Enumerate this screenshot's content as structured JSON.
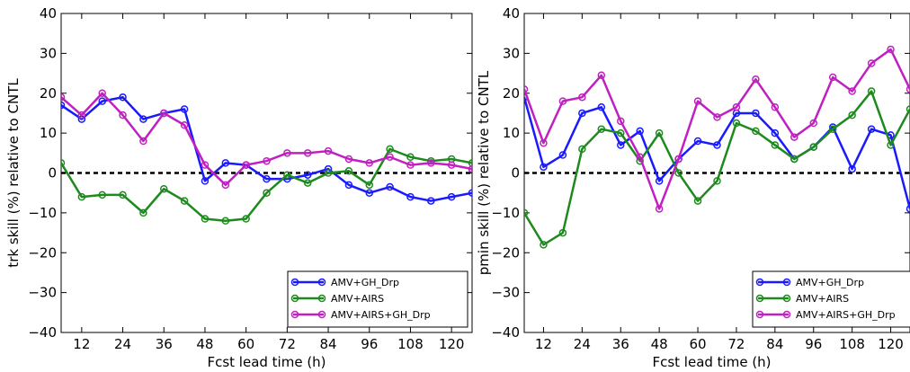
{
  "chart_data": [
    {
      "type": "line",
      "xlabel": "Fcst lead time (h)",
      "ylabel": "trk skill (%) relative to CNTL",
      "xlim": [
        6,
        126
      ],
      "ylim": [
        -40,
        40
      ],
      "xticks": [
        12,
        24,
        36,
        48,
        60,
        72,
        84,
        96,
        108,
        120
      ],
      "yticks": [
        -40,
        -30,
        -20,
        -10,
        0,
        10,
        20,
        30,
        40
      ],
      "ytick_labels": [
        "−40",
        "−30",
        "−20",
        "−10",
        "0",
        "10",
        "20",
        "30",
        "40"
      ],
      "zero_line": "dashed black",
      "grid": false,
      "legend_position": "lower right",
      "x": [
        6,
        12,
        18,
        24,
        30,
        36,
        42,
        48,
        54,
        60,
        66,
        72,
        78,
        84,
        90,
        96,
        102,
        108,
        114,
        120,
        126
      ],
      "series": [
        {
          "name": "AMV+GH_Drp",
          "color": "#1a1aff",
          "values": [
            17,
            13.5,
            18,
            19,
            13.5,
            15,
            16,
            -2,
            2.5,
            2,
            -1.5,
            -1.5,
            -0.5,
            1,
            -3,
            -5,
            -3.5,
            -6,
            -7,
            -6,
            -5
          ]
        },
        {
          "name": "AMV+AIRS",
          "color": "#1e8a1e",
          "values": [
            2.5,
            -6,
            -5.5,
            -5.5,
            -10,
            -4,
            -7,
            -11.5,
            -12,
            -11.5,
            -5,
            -0.5,
            -2.5,
            0,
            0.5,
            -3,
            6,
            4,
            3,
            3.5,
            2.5
          ]
        },
        {
          "name": "AMV+AIRS+GH_Drp",
          "color": "#c020c0",
          "values": [
            19,
            14.5,
            20,
            14.5,
            8,
            15,
            12,
            2,
            -3,
            2,
            3,
            5,
            5,
            5.5,
            3.5,
            2.5,
            4,
            2,
            2.5,
            2,
            1
          ]
        }
      ]
    },
    {
      "type": "line",
      "xlabel": "Fcst lead time (h)",
      "ylabel": "pmin skill (%) relative to CNTL",
      "xlim": [
        6,
        126
      ],
      "ylim": [
        -40,
        40
      ],
      "xticks": [
        12,
        24,
        36,
        48,
        60,
        72,
        84,
        96,
        108,
        120
      ],
      "yticks": [
        -40,
        -30,
        -20,
        -10,
        0,
        10,
        20,
        30,
        40
      ],
      "ytick_labels": [
        "−40",
        "−30",
        "−20",
        "−10",
        "0",
        "10",
        "20",
        "30",
        "40"
      ],
      "zero_line": "dashed black",
      "grid": false,
      "legend_position": "lower right",
      "x": [
        6,
        12,
        18,
        24,
        30,
        36,
        42,
        48,
        54,
        60,
        66,
        72,
        78,
        84,
        90,
        96,
        102,
        108,
        114,
        120,
        126
      ],
      "series": [
        {
          "name": "AMV+GH_Drp",
          "color": "#1a1aff",
          "values": [
            19,
            1.5,
            4.5,
            15,
            16.5,
            7,
            10.5,
            -2,
            3.5,
            8,
            7,
            15,
            15,
            10,
            3.5,
            6.5,
            11.5,
            1,
            11,
            9.5,
            -9
          ]
        },
        {
          "name": "AMV+AIRS",
          "color": "#1e8a1e",
          "values": [
            -10,
            -18,
            -15,
            6,
            11,
            10,
            3,
            10,
            0,
            -7,
            -2,
            12.5,
            10.5,
            7,
            3.5,
            6.5,
            11,
            14.5,
            20.5,
            7,
            16
          ]
        },
        {
          "name": "AMV+AIRS+GH_Drp",
          "color": "#c020c0",
          "values": [
            21,
            7.5,
            18,
            19,
            24.5,
            13,
            4,
            -9,
            3.5,
            18,
            14,
            16.5,
            23.5,
            16.5,
            9,
            12.5,
            24,
            20.5,
            27.5,
            31,
            21
          ]
        }
      ]
    }
  ]
}
